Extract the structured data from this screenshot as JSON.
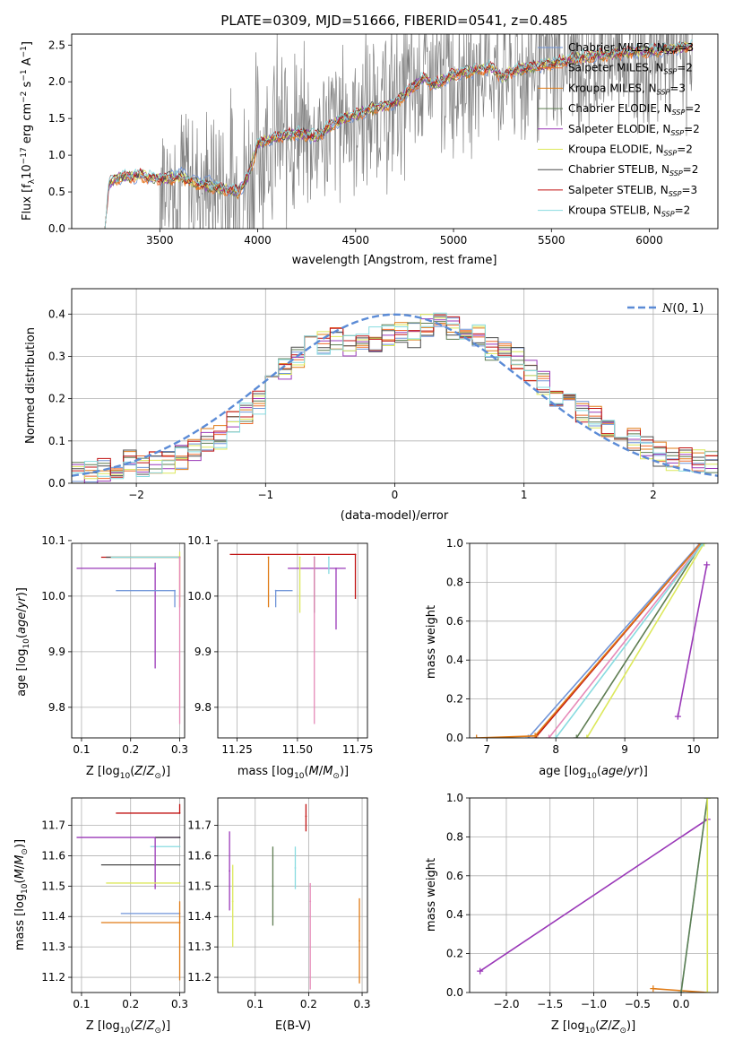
{
  "figure": {
    "title": "PLATE=0309, MJD=51666, FIBERID=0541, z=0.485"
  },
  "colors": {
    "chabrier_miles": "#6f94d8",
    "salpeter_miles": "#ee6a2c",
    "kroupa_miles": "#e07b16",
    "chabrier_elodie": "#5e7d52",
    "salpeter_elodie": "#9a38b8",
    "kroupa_elodie": "#dce85a",
    "chabrier_stelib": "#4a4a4a",
    "salpeter_stelib": "#c01313",
    "kroupa_stelib": "#88dbe0",
    "data": "#808080",
    "pink": "#e68ab8",
    "gaussian": "#5b8bd6",
    "grid": "#b0b0b0"
  },
  "chart_data": [
    {
      "type": "line",
      "title": "PLATE=0309, MJD=51666, FIBERID=0541, z=0.485",
      "xlabel": "wavelength [Angstrom, rest frame]",
      "ylabel": "Flux [f_λ 10^-17 erg cm^-2 s^-1 A^-1]",
      "xlim": [
        3050,
        6350
      ],
      "ylim": [
        0,
        2.65
      ],
      "xticks": [
        3500,
        4000,
        4500,
        5000,
        5500,
        6000
      ],
      "yticks": [
        0.0,
        0.5,
        1.0,
        1.5,
        2.0,
        2.5
      ],
      "grid": false,
      "legend_position": "top-right",
      "legend": [
        {
          "name": "Chabrier MILES, N_SSP=3",
          "color": "chabrier_miles"
        },
        {
          "name": "Salpeter MILES, N_SSP=2",
          "color": "salpeter_miles"
        },
        {
          "name": "Kroupa MILES, N_SSP=3",
          "color": "kroupa_miles"
        },
        {
          "name": "Chabrier ELODIE, N_SSP=2",
          "color": "chabrier_elodie"
        },
        {
          "name": "Salpeter ELODIE, N_SSP=2",
          "color": "salpeter_elodie"
        },
        {
          "name": "Kroupa ELODIE, N_SSP=2",
          "color": "kroupa_elodie"
        },
        {
          "name": "Chabrier STELIB, N_SSP=2",
          "color": "chabrier_stelib"
        },
        {
          "name": "Salpeter STELIB, N_SSP=3",
          "color": "salpeter_stelib"
        },
        {
          "name": "Kroupa STELIB, N_SSP=2",
          "color": "kroupa_stelib"
        }
      ],
      "model_continuum": {
        "x": [
          3220,
          3240,
          3300,
          3400,
          3500,
          3600,
          3700,
          3800,
          3900,
          3950,
          4000,
          4100,
          4200,
          4300,
          4400,
          4500,
          4600,
          4700,
          4800,
          4850,
          4900,
          5000,
          5100,
          5200,
          5250,
          5300,
          5400,
          5500,
          5600,
          5700,
          5800,
          5900,
          6000,
          6100,
          6200
        ],
        "y": [
          0.0,
          0.62,
          0.7,
          0.72,
          0.68,
          0.7,
          0.6,
          0.55,
          0.5,
          0.7,
          1.15,
          1.25,
          1.3,
          1.25,
          1.45,
          1.55,
          1.65,
          1.7,
          1.95,
          2.05,
          1.95,
          2.1,
          2.15,
          2.2,
          2.05,
          2.15,
          2.2,
          2.25,
          2.3,
          2.35,
          2.38,
          2.4,
          2.42,
          2.45,
          2.48
        ]
      },
      "data_spectrum": {
        "xrange": [
          3500,
          6220
        ],
        "note_color": "data"
      }
    },
    {
      "type": "histogram",
      "xlabel": "(data-model)/error",
      "ylabel": "Normed distribution",
      "xlim": [
        -2.5,
        2.5
      ],
      "ylim": [
        0,
        0.46
      ],
      "xticks": [
        -2,
        -1,
        0,
        1,
        2
      ],
      "yticks": [
        0.0,
        0.1,
        0.2,
        0.3,
        0.4
      ],
      "grid": true,
      "legend": [
        {
          "name": "N(0,1)",
          "style": "dashed",
          "color": "gaussian"
        }
      ],
      "bin_centers": [
        -2.45,
        -2.35,
        -2.25,
        -2.15,
        -2.05,
        -1.95,
        -1.85,
        -1.75,
        -1.65,
        -1.55,
        -1.45,
        -1.35,
        -1.25,
        -1.15,
        -1.05,
        -0.95,
        -0.85,
        -0.75,
        -0.65,
        -0.55,
        -0.45,
        -0.35,
        -0.25,
        -0.15,
        -0.05,
        0.05,
        0.15,
        0.25,
        0.35,
        0.45,
        0.55,
        0.65,
        0.75,
        0.85,
        0.95,
        1.05,
        1.15,
        1.25,
        1.35,
        1.45,
        1.55,
        1.65,
        1.75,
        1.85,
        1.95,
        2.05,
        2.15,
        2.25,
        2.35,
        2.45
      ],
      "mean_density": [
        0.02,
        0.025,
        0.03,
        0.04,
        0.05,
        0.04,
        0.045,
        0.05,
        0.06,
        0.08,
        0.1,
        0.11,
        0.14,
        0.17,
        0.19,
        0.23,
        0.27,
        0.3,
        0.32,
        0.33,
        0.34,
        0.33,
        0.33,
        0.34,
        0.35,
        0.36,
        0.35,
        0.37,
        0.38,
        0.37,
        0.36,
        0.35,
        0.32,
        0.31,
        0.3,
        0.27,
        0.24,
        0.21,
        0.19,
        0.17,
        0.16,
        0.13,
        0.11,
        0.1,
        0.08,
        0.07,
        0.06,
        0.055,
        0.05,
        0.05
      ]
    },
    {
      "type": "scatter",
      "subtype": "errorbar",
      "xlabel": "Z [log10(Z/Z_sun)]",
      "ylabel": "age  [log10(age/yr)]",
      "xlim": [
        0.08,
        0.31
      ],
      "ylim": [
        9.745,
        10.095
      ],
      "xticks": [
        0.1,
        0.2,
        0.3
      ],
      "yticks": [
        9.8,
        9.9,
        10.0,
        10.1
      ],
      "grid": true,
      "points": [
        {
          "x": 0.3,
          "y": 10.07,
          "xerr": [
            0.16,
            0.0
          ],
          "yerr": [
            0.0,
            0.0
          ],
          "color": "salpeter_stelib"
        },
        {
          "x": 0.3,
          "y": 10.07,
          "xerr": [
            0.15,
            0.0
          ],
          "yerr": [
            0.0,
            0.0
          ],
          "color": "chabrier_stelib"
        },
        {
          "x": 0.3,
          "y": 10.07,
          "xerr": [
            0.14,
            0.0
          ],
          "yerr": [
            0.0,
            0.01
          ],
          "color": "kroupa_elodie"
        },
        {
          "x": 0.3,
          "y": 10.07,
          "xerr": [
            0.14,
            0.0
          ],
          "yerr": [
            0.0,
            0.0
          ],
          "color": "kroupa_stelib"
        },
        {
          "x": 0.25,
          "y": 10.05,
          "xerr": [
            0.16,
            0.0
          ],
          "yerr": [
            0.18,
            0.01
          ],
          "color": "salpeter_elodie"
        },
        {
          "x": 0.29,
          "y": 10.01,
          "xerr": [
            0.12,
            0.0
          ],
          "yerr": [
            0.03,
            0.0
          ],
          "color": "chabrier_miles"
        },
        {
          "x": 0.3,
          "y": 10.07,
          "xerr": [
            0.0,
            0.0
          ],
          "yerr": [
            0.09,
            0.0
          ],
          "color": "kroupa_miles"
        },
        {
          "x": 0.3,
          "y": 10.07,
          "xerr": [
            0.0,
            0.0
          ],
          "yerr": [
            0.3,
            0.0
          ],
          "color": "pink"
        }
      ]
    },
    {
      "type": "scatter",
      "subtype": "errorbar",
      "xlabel": "mass [log10(M/M_sun)]",
      "xlim": [
        11.17,
        11.79
      ],
      "ylim": [
        9.745,
        10.095
      ],
      "xticks": [
        11.25,
        11.5,
        11.75
      ],
      "yticks": [
        9.8,
        9.9,
        10.0,
        10.1
      ],
      "grid": true,
      "points": [
        {
          "x": 11.74,
          "y": 10.075,
          "xerr": [
            0.52,
            0.0
          ],
          "yerr": [
            0.08,
            0.0
          ],
          "color": "salpeter_stelib"
        },
        {
          "x": 11.66,
          "y": 10.05,
          "xerr": [
            0.2,
            0.04
          ],
          "yerr": [
            0.11,
            0.0
          ],
          "color": "salpeter_elodie"
        },
        {
          "x": 11.63,
          "y": 10.07,
          "xerr": [
            0.0,
            0.0
          ],
          "yerr": [
            0.03,
            0.0
          ],
          "color": "kroupa_stelib"
        },
        {
          "x": 11.57,
          "y": 10.07,
          "xerr": [
            0.0,
            0.0
          ],
          "yerr": [
            0.1,
            0.0
          ],
          "color": "chabrier_stelib"
        },
        {
          "x": 11.51,
          "y": 10.07,
          "xerr": [
            0.0,
            0.0
          ],
          "yerr": [
            0.1,
            0.0
          ],
          "color": "kroupa_elodie"
        },
        {
          "x": 11.41,
          "y": 10.01,
          "xerr": [
            0.0,
            0.07
          ],
          "yerr": [
            0.03,
            0.0
          ],
          "color": "chabrier_miles"
        },
        {
          "x": 11.38,
          "y": 10.07,
          "xerr": [
            0.0,
            0.0
          ],
          "yerr": [
            0.09,
            0.0
          ],
          "color": "kroupa_miles"
        },
        {
          "x": 11.57,
          "y": 10.07,
          "xerr": [
            0.0,
            0.0
          ],
          "yerr": [
            0.3,
            0.0
          ],
          "color": "pink"
        }
      ]
    },
    {
      "type": "line",
      "xlabel": "age  [log10(age/yr)]",
      "ylabel": "mass weight",
      "xlim": [
        6.75,
        10.35
      ],
      "ylim": [
        0.0,
        1.0
      ],
      "xticks": [
        7,
        8,
        9,
        10
      ],
      "yticks": [
        0.0,
        0.2,
        0.4,
        0.6,
        0.8,
        1.0
      ],
      "grid": true,
      "series": [
        {
          "x": [
            7.6,
            10.09
          ],
          "y": [
            0.0,
            1.0
          ],
          "color": "chabrier_miles"
        },
        {
          "x": [
            7.7,
            10.1
          ],
          "y": [
            0.0,
            1.0
          ],
          "color": "salpeter_stelib"
        },
        {
          "x": [
            6.85,
            7.7,
            10.1
          ],
          "y": [
            0.0,
            0.01,
            1.0
          ],
          "color": "kroupa_miles"
        },
        {
          "x": [
            7.9,
            10.12
          ],
          "y": [
            0.0,
            1.0
          ],
          "color": "pink"
        },
        {
          "x": [
            8.3,
            10.12
          ],
          "y": [
            0.0,
            1.0
          ],
          "color": "chabrier_elodie"
        },
        {
          "x": [
            8.45,
            10.15
          ],
          "y": [
            0.0,
            1.0
          ],
          "color": "kroupa_elodie"
        },
        {
          "x": [
            8.0,
            10.13
          ],
          "y": [
            0.0,
            1.0
          ],
          "color": "kroupa_stelib"
        },
        {
          "x": [
            9.77,
            10.19
          ],
          "y": [
            0.11,
            0.89
          ],
          "color": "salpeter_elodie"
        }
      ]
    },
    {
      "type": "scatter",
      "subtype": "errorbar",
      "xlabel": "Z [log10(Z/Z_sun)]",
      "ylabel": "mass [log10(M/M_sun)]",
      "xlim": [
        0.08,
        0.31
      ],
      "ylim": [
        11.15,
        11.79
      ],
      "xticks": [
        0.1,
        0.2,
        0.3
      ],
      "yticks": [
        11.2,
        11.3,
        11.4,
        11.5,
        11.6,
        11.7
      ],
      "grid": true,
      "points": [
        {
          "x": 0.3,
          "y": 11.74,
          "xerr": [
            0.13,
            0.0
          ],
          "yerr": [
            0.0,
            0.03
          ],
          "color": "salpeter_stelib"
        },
        {
          "x": 0.3,
          "y": 11.66,
          "xerr": [
            0.21,
            0.0
          ],
          "yerr": [
            0.0,
            0.0
          ],
          "color": "salpeter_elodie"
        },
        {
          "x": 0.3,
          "y": 11.66,
          "xerr": [
            0.05,
            0.0
          ],
          "yerr": [
            0.0,
            0.0
          ],
          "color": "chabrier_stelib"
        },
        {
          "x": 0.3,
          "y": 11.63,
          "xerr": [
            0.06,
            0.0
          ],
          "yerr": [
            0.0,
            0.0
          ],
          "color": "kroupa_stelib"
        },
        {
          "x": 0.3,
          "y": 11.57,
          "xerr": [
            0.16,
            0.0
          ],
          "yerr": [
            0.0,
            0.0
          ],
          "color": "chabrier_stelib"
        },
        {
          "x": 0.25,
          "y": 11.57,
          "xerr": [
            0.0,
            0.0
          ],
          "yerr": [
            0.08,
            0.09
          ],
          "color": "salpeter_elodie"
        },
        {
          "x": 0.3,
          "y": 11.51,
          "xerr": [
            0.15,
            0.0
          ],
          "yerr": [
            0.0,
            0.0
          ],
          "color": "kroupa_elodie"
        },
        {
          "x": 0.3,
          "y": 11.41,
          "xerr": [
            0.12,
            0.0
          ],
          "yerr": [
            0.0,
            0.0
          ],
          "color": "chabrier_miles"
        },
        {
          "x": 0.3,
          "y": 11.38,
          "xerr": [
            0.16,
            0.0
          ],
          "yerr": [
            0.19,
            0.07
          ],
          "color": "kroupa_miles"
        }
      ]
    },
    {
      "type": "scatter",
      "subtype": "errorbar",
      "xlabel": "E(B-V)",
      "xlim": [
        0.03,
        0.31
      ],
      "ylim": [
        11.15,
        11.79
      ],
      "xticks": [
        0.1,
        0.2,
        0.3
      ],
      "yticks": [
        11.2,
        11.3,
        11.4,
        11.5,
        11.6,
        11.7
      ],
      "grid": true,
      "points": [
        {
          "x": 0.052,
          "y": 11.55,
          "xerr": [
            0,
            0
          ],
          "yerr": [
            0.13,
            0.13
          ],
          "color": "salpeter_elodie"
        },
        {
          "x": 0.058,
          "y": 11.45,
          "xerr": [
            0,
            0
          ],
          "yerr": [
            0.15,
            0.12
          ],
          "color": "kroupa_elodie"
        },
        {
          "x": 0.133,
          "y": 11.5,
          "xerr": [
            0,
            0
          ],
          "yerr": [
            0.13,
            0.13
          ],
          "color": "chabrier_elodie"
        },
        {
          "x": 0.175,
          "y": 11.56,
          "xerr": [
            0,
            0
          ],
          "yerr": [
            0.07,
            0.07
          ],
          "color": "kroupa_stelib"
        },
        {
          "x": 0.195,
          "y": 11.73,
          "xerr": [
            0,
            0
          ],
          "yerr": [
            0.05,
            0.04
          ],
          "color": "salpeter_stelib"
        },
        {
          "x": 0.203,
          "y": 11.45,
          "xerr": [
            0,
            0
          ],
          "yerr": [
            0.29,
            0.06
          ],
          "color": "pink"
        },
        {
          "x": 0.295,
          "y": 11.32,
          "xerr": [
            0,
            0
          ],
          "yerr": [
            0.14,
            0.14
          ],
          "color": "kroupa_miles"
        }
      ]
    },
    {
      "type": "line",
      "xlabel": "Z [log10(Z/Z_sun)]",
      "ylabel": "mass weight",
      "xlim": [
        -2.42,
        0.42
      ],
      "ylim": [
        0.0,
        1.0
      ],
      "xticks": [
        -2.0,
        -1.5,
        -1.0,
        -0.5,
        0.0
      ],
      "yticks": [
        0.0,
        0.2,
        0.4,
        0.6,
        0.8,
        1.0
      ],
      "grid": true,
      "series": [
        {
          "x": [
            -2.3,
            0.3
          ],
          "y": [
            0.11,
            0.89
          ],
          "color": "salpeter_elodie"
        },
        {
          "x": [
            -0.32,
            0.3
          ],
          "y": [
            0.02,
            0.0
          ],
          "color": "kroupa_miles"
        },
        {
          "x": [
            0.0,
            0.3
          ],
          "y": [
            0.0,
            1.0
          ],
          "color": "kroupa_stelib"
        },
        {
          "x": [
            0.0,
            0.3
          ],
          "y": [
            0.0,
            1.0
          ],
          "color": "chabrier_elodie"
        },
        {
          "x": [
            0.3,
            0.3
          ],
          "y": [
            0.0,
            1.0
          ],
          "color": "kroupa_elodie"
        }
      ]
    }
  ],
  "labels": {
    "p1_title": "PLATE=0309, MJD=51666, FIBERID=0541, z=0.485",
    "p1_xlabel": "wavelength [Angstrom, rest frame]",
    "p2_xlabel": "(data-model)/error",
    "p2_ylabel": "Normed distribution",
    "p5_ylabel": "mass weight",
    "p8_ylabel": "mass weight",
    "p7_xlabel": "E(B-V)",
    "gauss_legend": "(0, 1)"
  }
}
